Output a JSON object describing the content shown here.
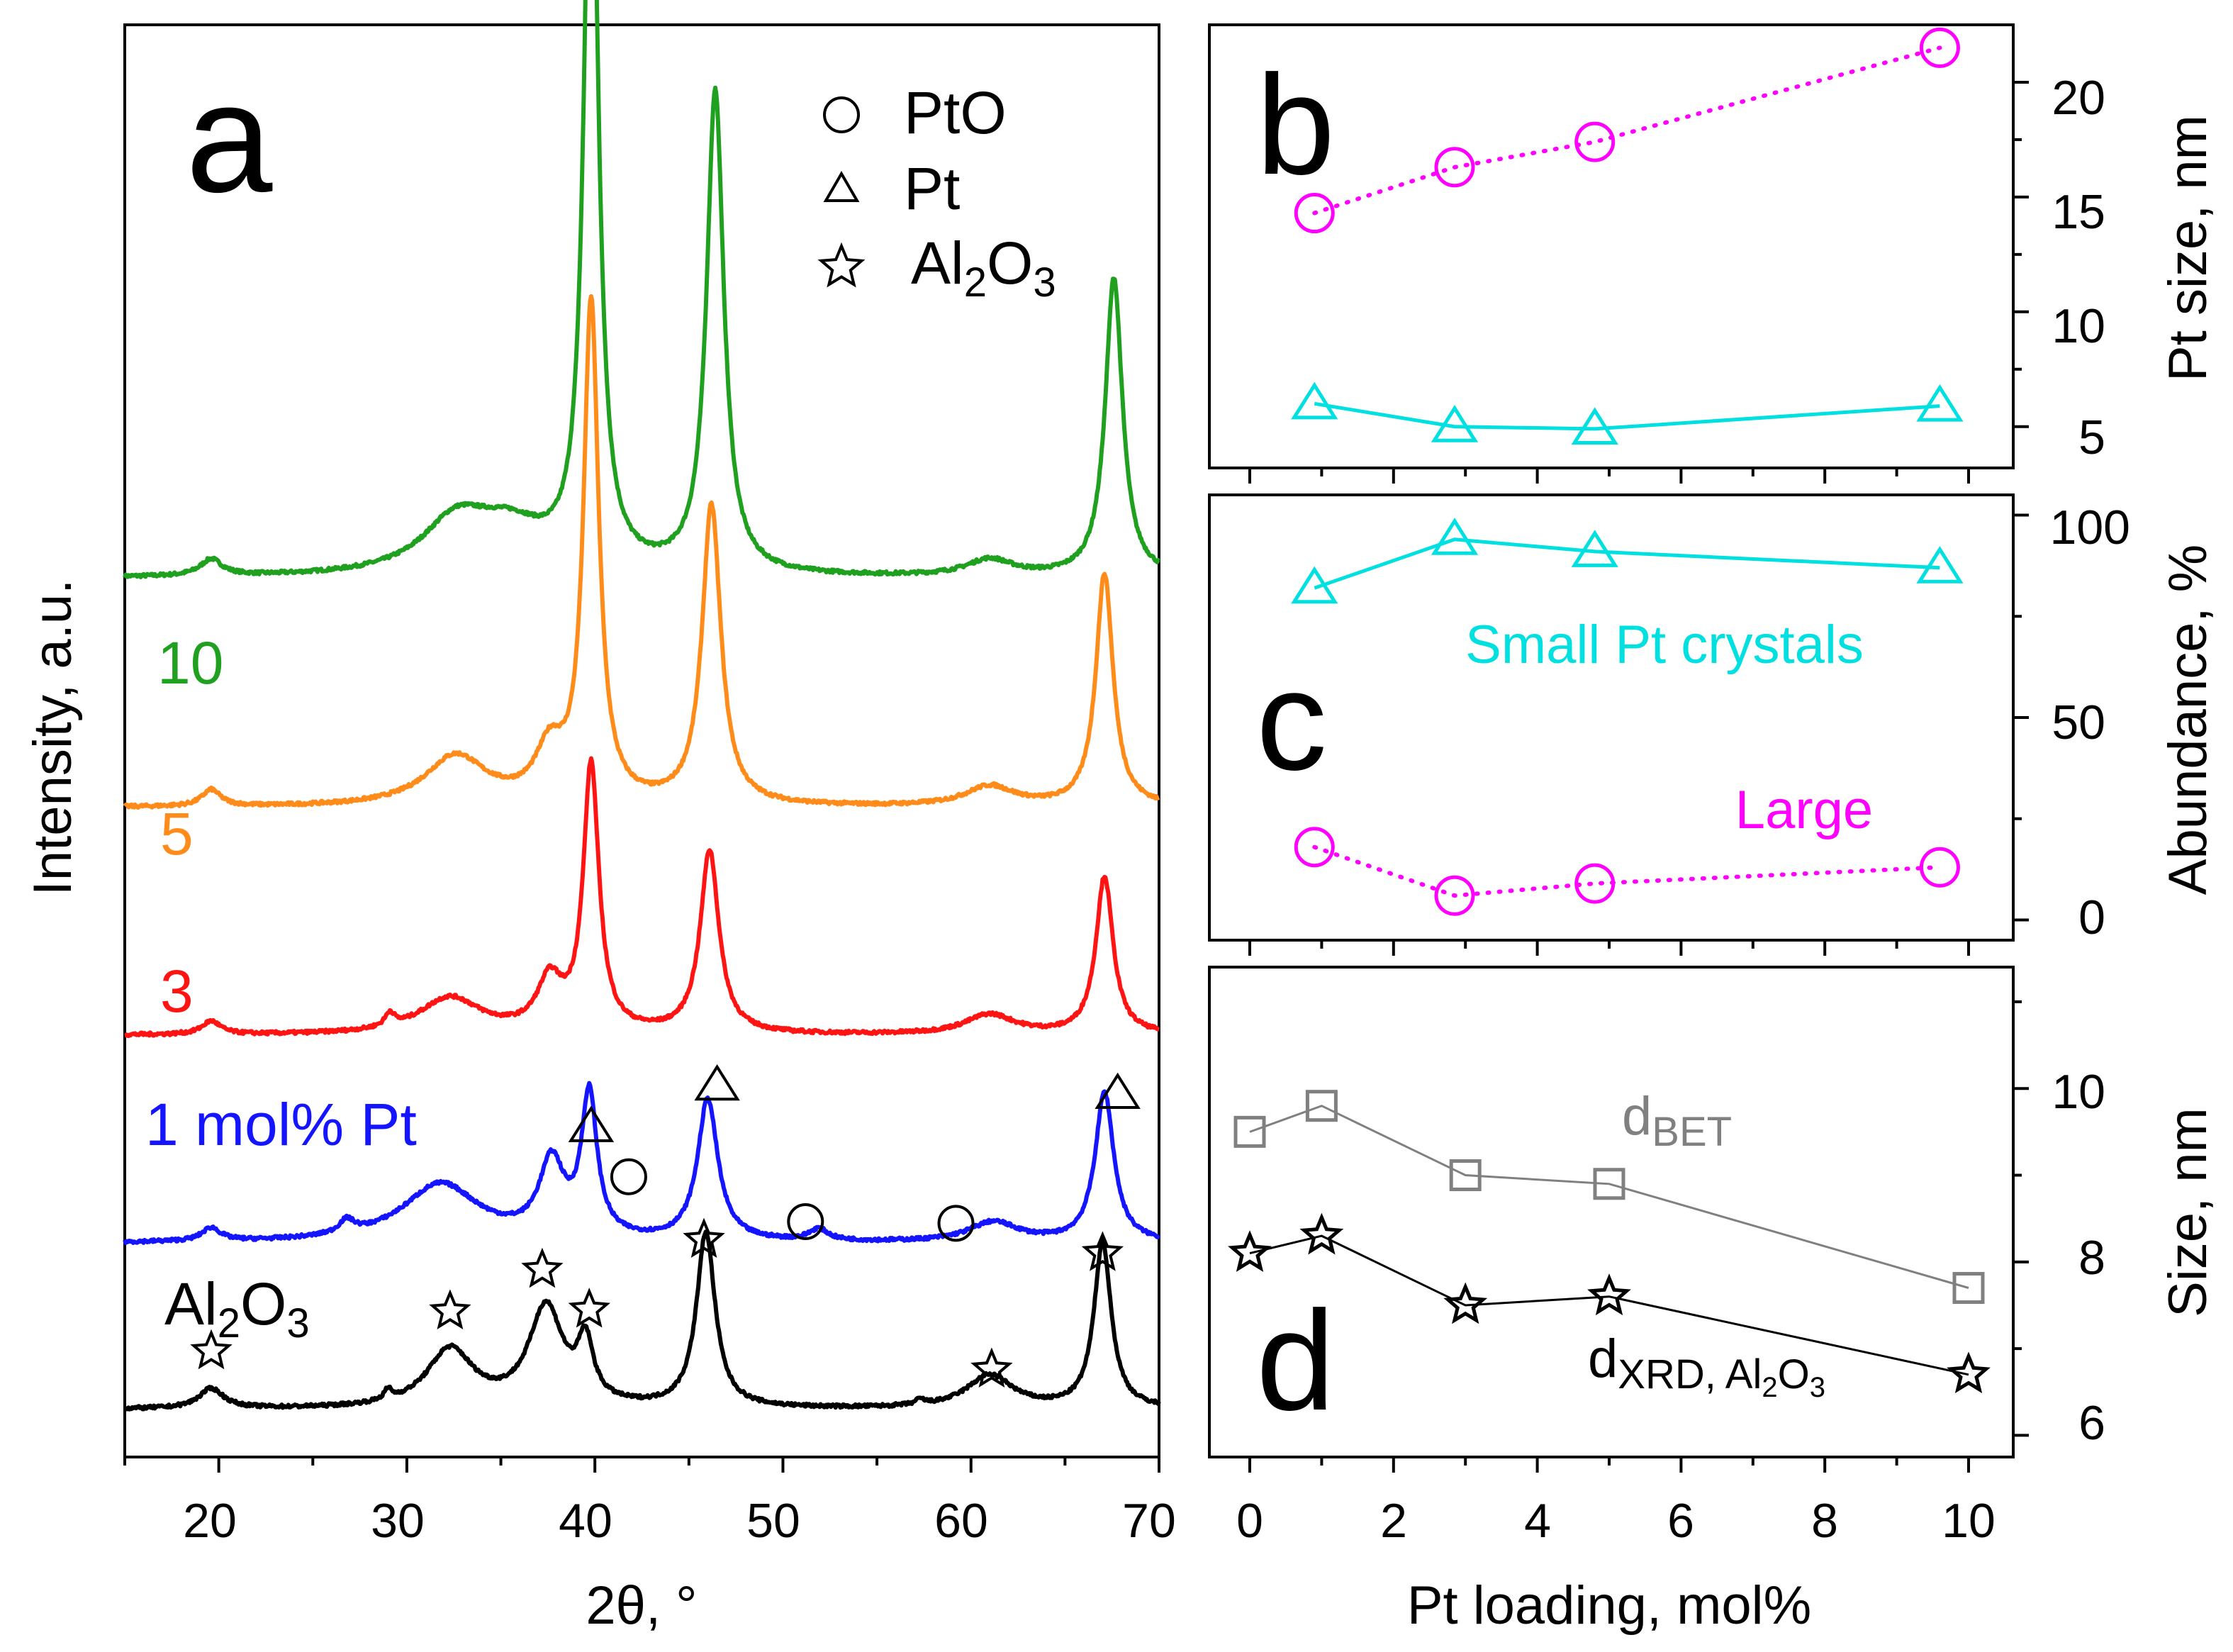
{
  "colors": {
    "pt10": "#1fa01f",
    "pt5": "#ff8c1a",
    "pt3": "#ff1414",
    "pt1": "#1414ff",
    "al2o3": "#000000",
    "cyan": "#00e0e0",
    "magenta": "#ff00ff",
    "gray": "#808080"
  },
  "chart_data": [
    {
      "panel": "a",
      "type": "line",
      "panel_label": "a",
      "xlabel": "2θ, °",
      "ylabel": "Intensity, a.u.",
      "xlim": [
        15,
        70
      ],
      "xticks": [
        "20",
        "30",
        "40",
        "50",
        "60",
        "70"
      ],
      "legend": [
        {
          "marker": "circle",
          "label": "PtO"
        },
        {
          "marker": "triangle",
          "label": "Pt"
        },
        {
          "marker": "star",
          "label_main": "Al",
          "label_sub1": "2",
          "label_mid": "O",
          "label_sub2": "3"
        }
      ],
      "series": [
        {
          "name": "10",
          "color": "#1fa01f",
          "offset": 5.0,
          "label": "10",
          "peaks": [
            [
              39.8,
              4.9,
              0.45
            ],
            [
              46.4,
              2.9,
              0.55
            ],
            [
              67.6,
              1.8,
              0.55
            ],
            [
              32.6,
              0.3,
              2.2
            ],
            [
              35.5,
              0.25,
              2.5
            ],
            [
              61.0,
              0.1,
              1.5
            ],
            [
              19.6,
              0.1,
              0.7
            ]
          ]
        },
        {
          "name": "5",
          "color": "#ff8c1a",
          "offset": 3.62,
          "label": "5",
          "peaks": [
            [
              39.8,
              3.0,
              0.48
            ],
            [
              46.2,
              1.8,
              0.6
            ],
            [
              67.1,
              1.4,
              0.55
            ],
            [
              32.6,
              0.3,
              2.0
            ],
            [
              37.6,
              0.3,
              0.9
            ],
            [
              61.0,
              0.12,
              1.6
            ],
            [
              19.6,
              0.1,
              0.6
            ]
          ]
        },
        {
          "name": "3",
          "color": "#ff1414",
          "offset": 2.25,
          "label": "3",
          "peaks": [
            [
              39.8,
              1.6,
              0.5
            ],
            [
              46.1,
              1.1,
              0.6
            ],
            [
              67.1,
              0.95,
              0.55
            ],
            [
              32.3,
              0.22,
              2.0
            ],
            [
              37.6,
              0.3,
              0.8
            ],
            [
              61.0,
              0.12,
              1.6
            ],
            [
              19.6,
              0.08,
              0.6
            ],
            [
              29.1,
              0.08,
              0.3
            ]
          ]
        },
        {
          "name": "1 mol% Pt",
          "color": "#1414ff",
          "offset": 1.0,
          "label": "1 mol% Pt",
          "peaks": [
            [
              39.7,
              0.85,
              0.5
            ],
            [
              46.0,
              0.85,
              0.65
            ],
            [
              67.1,
              0.9,
              0.6
            ],
            [
              31.8,
              0.35,
              2.5
            ],
            [
              37.7,
              0.45,
              0.8
            ],
            [
              61.2,
              0.12,
              1.6
            ],
            [
              19.6,
              0.08,
              0.6
            ],
            [
              51.9,
              0.07,
              0.6
            ],
            [
              26.8,
              0.08,
              0.5
            ]
          ]
        },
        {
          "name": "Al2O3",
          "color": "#000000",
          "offset": 0.0,
          "label_main": "Al",
          "label_sub1": "2",
          "label_mid": "O",
          "label_sub2": "3",
          "peaks": [
            [
              19.6,
              0.12,
              0.8
            ],
            [
              32.3,
              0.35,
              1.5
            ],
            [
              37.4,
              0.6,
              1.1
            ],
            [
              39.5,
              0.35,
              0.5
            ],
            [
              45.9,
              1.05,
              0.6
            ],
            [
              61.0,
              0.2,
              1.5
            ],
            [
              67.0,
              1.0,
              0.55
            ],
            [
              29.0,
              0.06,
              0.25
            ],
            [
              57.3,
              0.03,
              0.3
            ]
          ]
        }
      ],
      "markers": [
        {
          "type": "triangle",
          "x": 39.8,
          "y": 1.7
        },
        {
          "type": "triangle",
          "x": 46.5,
          "y": 1.95
        },
        {
          "type": "triangle",
          "x": 67.8,
          "y": 1.9
        },
        {
          "type": "circle",
          "x": 41.8,
          "y": 1.4
        },
        {
          "type": "circle",
          "x": 51.2,
          "y": 1.13
        },
        {
          "type": "circle",
          "x": 59.2,
          "y": 1.12
        },
        {
          "type": "star",
          "x": 19.6,
          "y": 0.35
        },
        {
          "type": "star",
          "x": 32.3,
          "y": 0.59
        },
        {
          "type": "star",
          "x": 37.2,
          "y": 0.84
        },
        {
          "type": "star",
          "x": 39.7,
          "y": 0.6
        },
        {
          "type": "star",
          "x": 45.8,
          "y": 1.02
        },
        {
          "type": "star",
          "x": 61.1,
          "y": 0.24
        },
        {
          "type": "star",
          "x": 67.0,
          "y": 0.94
        }
      ]
    },
    {
      "panel": "b",
      "type": "line",
      "panel_label": "b",
      "ylabel": "Pt size, nm",
      "ylim": [
        3.2,
        22.5
      ],
      "yticks": [
        "5",
        "10",
        "15",
        "20"
      ],
      "series": [
        {
          "name": "Large Pt crystals",
          "marker": "circle",
          "color": "#ff00ff",
          "style": "dotted",
          "x": [
            0.9,
            2.85,
            4.8,
            9.6
          ],
          "y": [
            14.3,
            16.3,
            17.4,
            21.5
          ]
        },
        {
          "name": "Small Pt crystals",
          "marker": "triangle",
          "color": "#00e0e0",
          "style": "solid",
          "x": [
            0.9,
            2.85,
            4.8,
            9.6
          ],
          "y": [
            6.0,
            5.0,
            4.9,
            5.9
          ]
        }
      ]
    },
    {
      "panel": "c",
      "type": "line",
      "panel_label": "c",
      "ylabel": "Abundance, %",
      "ylim": [
        -5,
        105
      ],
      "yticks": [
        "0",
        "50",
        "100"
      ],
      "annotations": {
        "small": "Small Pt crystals",
        "large": "Large"
      },
      "series": [
        {
          "name": "Small Pt crystals",
          "marker": "triangle",
          "color": "#00e0e0",
          "style": "solid",
          "x": [
            0.9,
            2.85,
            4.8,
            9.6
          ],
          "y": [
            82,
            94,
            91,
            87
          ]
        },
        {
          "name": "Large",
          "marker": "circle",
          "color": "#ff00ff",
          "style": "dotted",
          "x": [
            0.9,
            2.85,
            4.8,
            9.6
          ],
          "y": [
            18,
            6,
            9,
            13
          ]
        }
      ]
    },
    {
      "panel": "d",
      "type": "line",
      "panel_label": "d",
      "xlabel": "Pt loading, mol%",
      "ylabel": "Size, nm",
      "xlim": [
        -0.7,
        10.5
      ],
      "ylim": [
        5.75,
        11.4
      ],
      "xticks": [
        "0",
        "2",
        "4",
        "6",
        "8",
        "10"
      ],
      "yticks": [
        "6",
        "8",
        "10"
      ],
      "annotations": {
        "dbet_main": "d",
        "dbet_sub": "BET",
        "dxrd_main": "d",
        "dxrd_sub_a": "XRD, Al",
        "dxrd_sub_b": "2",
        "dxrd_sub_c": "O",
        "dxrd_sub_d": "3"
      },
      "series": [
        {
          "name": "dBET",
          "marker": "square",
          "color": "#808080",
          "x": [
            0,
            1,
            3,
            5,
            10
          ],
          "y": [
            9.5,
            9.8,
            9.0,
            8.9,
            7.7
          ]
        },
        {
          "name": "dXRD, Al2O3",
          "marker": "star",
          "color": "#000000",
          "x": [
            0,
            1,
            3,
            5,
            10
          ],
          "y": [
            8.1,
            8.3,
            7.5,
            7.6,
            6.7
          ]
        }
      ]
    }
  ]
}
